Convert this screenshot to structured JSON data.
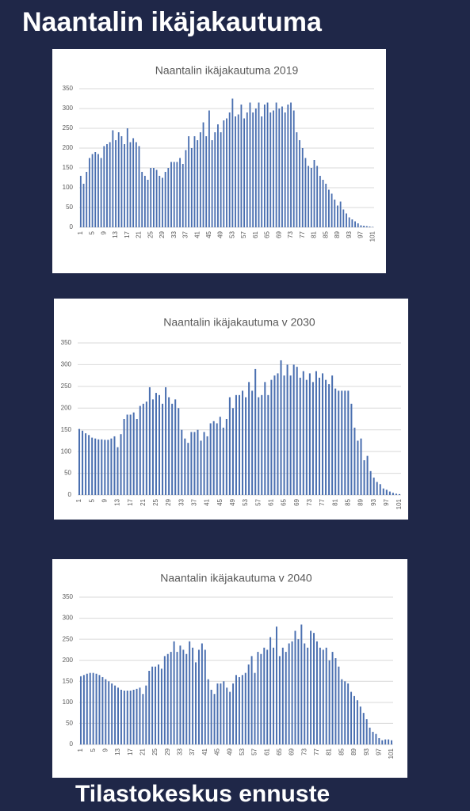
{
  "title": "Naantalin ikäjakautuma",
  "footer": "Tilastokeskus ennuste",
  "chart_data": [
    {
      "type": "bar",
      "title": "Naantalin ikäjakautuma 2019",
      "categories": [
        "1",
        null,
        null,
        null,
        "5",
        null,
        null,
        null,
        "9",
        null,
        null,
        null,
        "13",
        null,
        null,
        null,
        "17",
        null,
        null,
        null,
        "21",
        null,
        null,
        null,
        "25",
        null,
        null,
        null,
        "29",
        null,
        null,
        null,
        "33",
        null,
        null,
        null,
        "37",
        null,
        null,
        null,
        "41",
        null,
        null,
        null,
        "45",
        null,
        null,
        null,
        "49",
        null,
        null,
        null,
        "53",
        null,
        null,
        null,
        "57",
        null,
        null,
        null,
        "61",
        null,
        null,
        null,
        "65",
        null,
        null,
        null,
        "69",
        null,
        null,
        null,
        "73",
        null,
        null,
        null,
        "77",
        null,
        null,
        null,
        "81",
        null,
        null,
        null,
        "85",
        null,
        null,
        null,
        "89",
        null,
        null,
        null,
        "93",
        null,
        null,
        null,
        "97",
        null,
        null,
        null,
        "101"
      ],
      "values": [
        130,
        110,
        140,
        175,
        185,
        190,
        185,
        175,
        205,
        210,
        215,
        245,
        220,
        240,
        230,
        210,
        250,
        215,
        225,
        215,
        205,
        140,
        130,
        120,
        150,
        150,
        145,
        130,
        125,
        140,
        150,
        165,
        165,
        165,
        175,
        160,
        195,
        230,
        200,
        230,
        220,
        240,
        265,
        230,
        295,
        220,
        240,
        260,
        240,
        270,
        275,
        290,
        325,
        280,
        285,
        310,
        275,
        290,
        315,
        290,
        300,
        315,
        280,
        310,
        315,
        290,
        295,
        315,
        300,
        305,
        290,
        310,
        315,
        295,
        240,
        220,
        200,
        175,
        155,
        150,
        170,
        155,
        130,
        120,
        110,
        95,
        85,
        70,
        55,
        65,
        45,
        35,
        25,
        20,
        15,
        10,
        5,
        4,
        3,
        2,
        1
      ],
      "color": "#4a6fb0",
      "ylim": [
        0,
        350
      ],
      "yticks": [
        0,
        50,
        100,
        150,
        200,
        250,
        300,
        350
      ],
      "grid": true
    },
    {
      "type": "bar",
      "title": "Naantalin ikäjakautuma v 2030",
      "categories": [
        "1",
        null,
        null,
        null,
        "5",
        null,
        null,
        null,
        "9",
        null,
        null,
        null,
        "13",
        null,
        null,
        null,
        "17",
        null,
        null,
        null,
        "21",
        null,
        null,
        null,
        "25",
        null,
        null,
        null,
        "29",
        null,
        null,
        null,
        "33",
        null,
        null,
        null,
        "37",
        null,
        null,
        null,
        "41",
        null,
        null,
        null,
        "45",
        null,
        null,
        null,
        "49",
        null,
        null,
        null,
        "53",
        null,
        null,
        null,
        "57",
        null,
        null,
        null,
        "61",
        null,
        null,
        null,
        "65",
        null,
        null,
        null,
        "69",
        null,
        null,
        null,
        "73",
        null,
        null,
        null,
        "77",
        null,
        null,
        null,
        "81",
        null,
        null,
        null,
        "85",
        null,
        null,
        null,
        "89",
        null,
        null,
        null,
        "93",
        null,
        null,
        null,
        "97",
        null,
        null,
        null,
        "101"
      ],
      "values": [
        152,
        148,
        142,
        138,
        132,
        130,
        128,
        128,
        127,
        127,
        130,
        135,
        110,
        140,
        175,
        185,
        185,
        190,
        175,
        205,
        210,
        215,
        248,
        220,
        235,
        230,
        210,
        248,
        225,
        210,
        220,
        200,
        150,
        130,
        120,
        145,
        145,
        150,
        125,
        145,
        135,
        165,
        170,
        165,
        180,
        155,
        175,
        225,
        200,
        230,
        230,
        240,
        225,
        260,
        240,
        290,
        225,
        230,
        260,
        230,
        265,
        275,
        280,
        310,
        275,
        300,
        275,
        300,
        295,
        270,
        285,
        265,
        280,
        260,
        285,
        270,
        280,
        265,
        255,
        275,
        245,
        240,
        240,
        240,
        240,
        210,
        155,
        125,
        130,
        80,
        90,
        55,
        40,
        30,
        25,
        15,
        12,
        8,
        5,
        3,
        2
      ],
      "color": "#4a6fb0",
      "ylim": [
        0,
        350
      ],
      "yticks": [
        0,
        50,
        100,
        150,
        200,
        250,
        300,
        350
      ],
      "grid": true
    },
    {
      "type": "bar",
      "title": "Naantalin ikäjakautuma v 2040",
      "categories": [
        "1",
        null,
        null,
        null,
        "5",
        null,
        null,
        null,
        "9",
        null,
        null,
        null,
        "13",
        null,
        null,
        null,
        "17",
        null,
        null,
        null,
        "21",
        null,
        null,
        null,
        "25",
        null,
        null,
        null,
        "29",
        null,
        null,
        null,
        "33",
        null,
        null,
        null,
        "37",
        null,
        null,
        null,
        "41",
        null,
        null,
        null,
        "45",
        null,
        null,
        null,
        "49",
        null,
        null,
        null,
        "53",
        null,
        null,
        null,
        "57",
        null,
        null,
        null,
        "61",
        null,
        null,
        null,
        "65",
        null,
        null,
        null,
        "69",
        null,
        null,
        null,
        "73",
        null,
        null,
        null,
        "77",
        null,
        null,
        null,
        "81",
        null,
        null,
        null,
        "85",
        null,
        null,
        null,
        "89",
        null,
        null,
        null,
        "93",
        null,
        null,
        null,
        "97",
        null,
        null,
        null,
        "101"
      ],
      "values": [
        162,
        165,
        168,
        170,
        170,
        168,
        165,
        160,
        155,
        150,
        145,
        140,
        135,
        130,
        128,
        128,
        128,
        130,
        132,
        135,
        120,
        140,
        175,
        185,
        185,
        190,
        180,
        210,
        215,
        220,
        245,
        220,
        235,
        225,
        215,
        245,
        230,
        195,
        225,
        240,
        225,
        155,
        130,
        120,
        145,
        145,
        150,
        135,
        125,
        145,
        165,
        160,
        165,
        170,
        190,
        210,
        170,
        220,
        215,
        230,
        225,
        255,
        230,
        280,
        210,
        230,
        220,
        240,
        245,
        270,
        250,
        285,
        240,
        230,
        270,
        265,
        245,
        230,
        225,
        230,
        200,
        220,
        205,
        185,
        155,
        150,
        145,
        125,
        115,
        105,
        90,
        75,
        60,
        40,
        30,
        25,
        15,
        10,
        12,
        12,
        10
      ],
      "color": "#4a6fb0",
      "ylim": [
        0,
        350
      ],
      "yticks": [
        0,
        50,
        100,
        150,
        200,
        250,
        300,
        350
      ],
      "grid": true
    }
  ]
}
